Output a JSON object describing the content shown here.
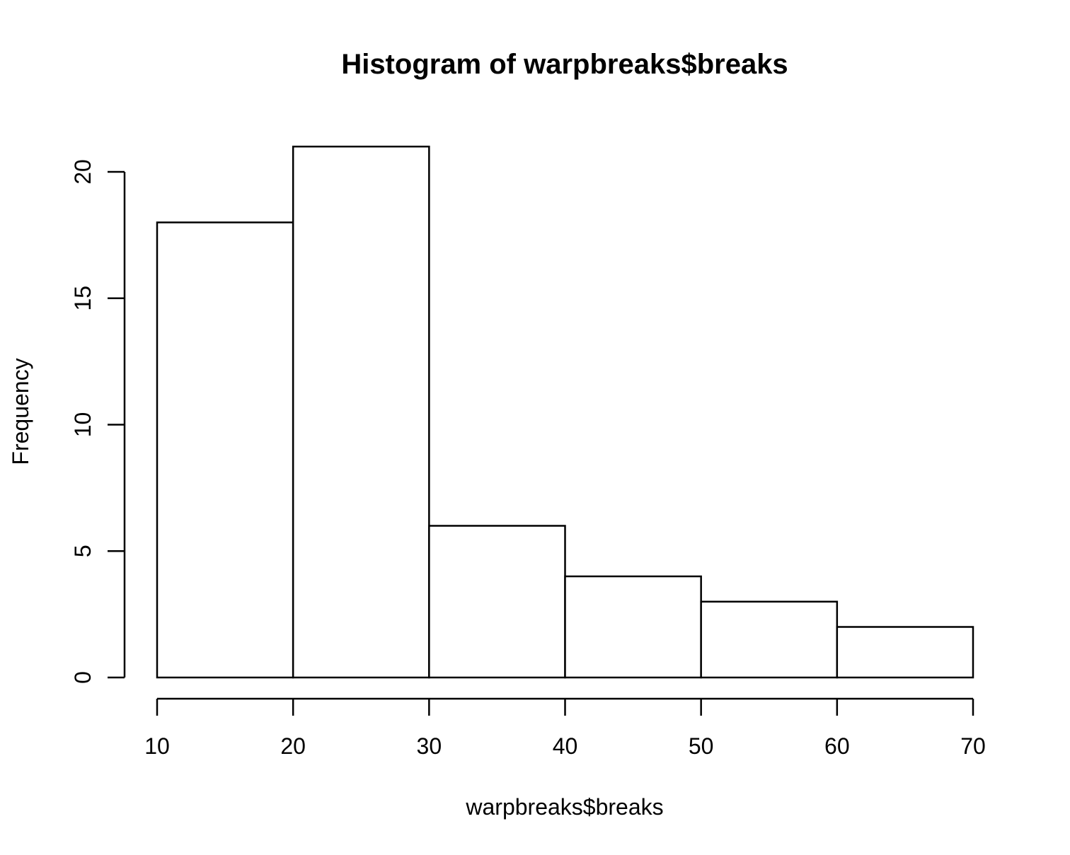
{
  "chart_data": {
    "type": "histogram",
    "title": "Histogram of warpbreaks$breaks",
    "xlabel": "warpbreaks$breaks",
    "ylabel": "Frequency",
    "bins": [
      {
        "start": 10,
        "end": 20,
        "count": 18
      },
      {
        "start": 20,
        "end": 30,
        "count": 21
      },
      {
        "start": 30,
        "end": 40,
        "count": 6
      },
      {
        "start": 40,
        "end": 50,
        "count": 4
      },
      {
        "start": 50,
        "end": 60,
        "count": 3
      },
      {
        "start": 60,
        "end": 70,
        "count": 2
      }
    ],
    "xlim": [
      10,
      70
    ],
    "ylim": [
      0,
      21
    ],
    "x_ticks": [
      10,
      20,
      30,
      40,
      50,
      60,
      70
    ],
    "y_ticks": [
      0,
      5,
      10,
      15,
      20
    ],
    "bar_fill": "#ffffff",
    "stroke_color": "#000000",
    "grid": false
  }
}
